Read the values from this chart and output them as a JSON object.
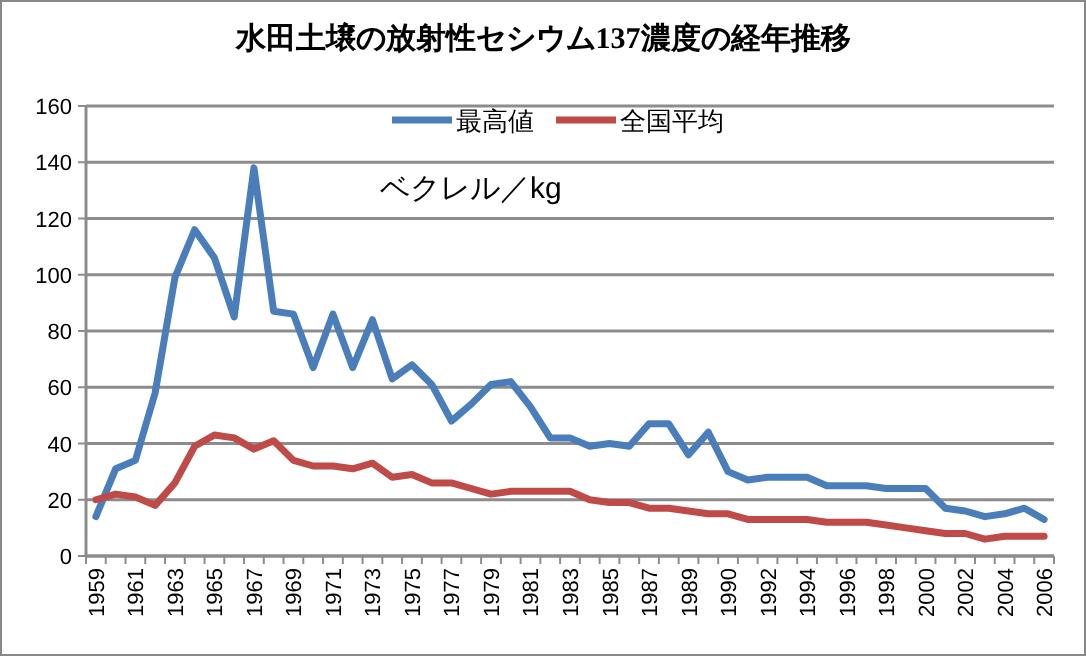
{
  "chart_data": {
    "type": "line",
    "title": "水田土壌の放射性セシウム137濃度の経年推移",
    "categories": [
      "1959",
      null,
      "1961",
      null,
      "1963",
      null,
      "1965",
      null,
      "1967",
      null,
      "1969",
      null,
      "1971",
      null,
      "1973",
      null,
      "1975",
      null,
      "1977",
      null,
      "1979",
      null,
      "1981",
      null,
      "1983",
      null,
      "1985",
      null,
      "1987",
      null,
      "1989",
      null,
      "1990",
      null,
      "1992",
      null,
      "1994",
      null,
      "1996",
      null,
      "1998",
      null,
      "2000",
      null,
      "2002",
      null,
      "2004",
      null,
      "2006"
    ],
    "series": [
      {
        "name": "最高値",
        "color": "#4a7ebb",
        "values": [
          14,
          31,
          34,
          58,
          99,
          116,
          106,
          85,
          138,
          87,
          86,
          67,
          86,
          67,
          84,
          63,
          68,
          61,
          48,
          54,
          61,
          62,
          53,
          42,
          42,
          39,
          40,
          39,
          47,
          47,
          36,
          44,
          30,
          27,
          28,
          28,
          28,
          25,
          25,
          25,
          24,
          24,
          24,
          17,
          16,
          14,
          15,
          17,
          13
        ]
      },
      {
        "name": "全国平均",
        "color": "#be4b48",
        "values": [
          20,
          22,
          21,
          18,
          26,
          39,
          43,
          42,
          38,
          41,
          34,
          32,
          32,
          31,
          33,
          28,
          29,
          26,
          26,
          24,
          22,
          23,
          23,
          23,
          23,
          20,
          19,
          19,
          17,
          17,
          16,
          15,
          15,
          13,
          13,
          13,
          13,
          12,
          12,
          12,
          11,
          10,
          9,
          8,
          8,
          6,
          7,
          7,
          7
        ]
      }
    ],
    "ylim": [
      0,
      160
    ],
    "yticks": [
      0,
      20,
      40,
      60,
      80,
      100,
      120,
      140,
      160
    ],
    "grid": "y",
    "legend": "top",
    "marker": "none",
    "line_style": "solid",
    "annotations": [
      "ベクレル／kg"
    ]
  }
}
